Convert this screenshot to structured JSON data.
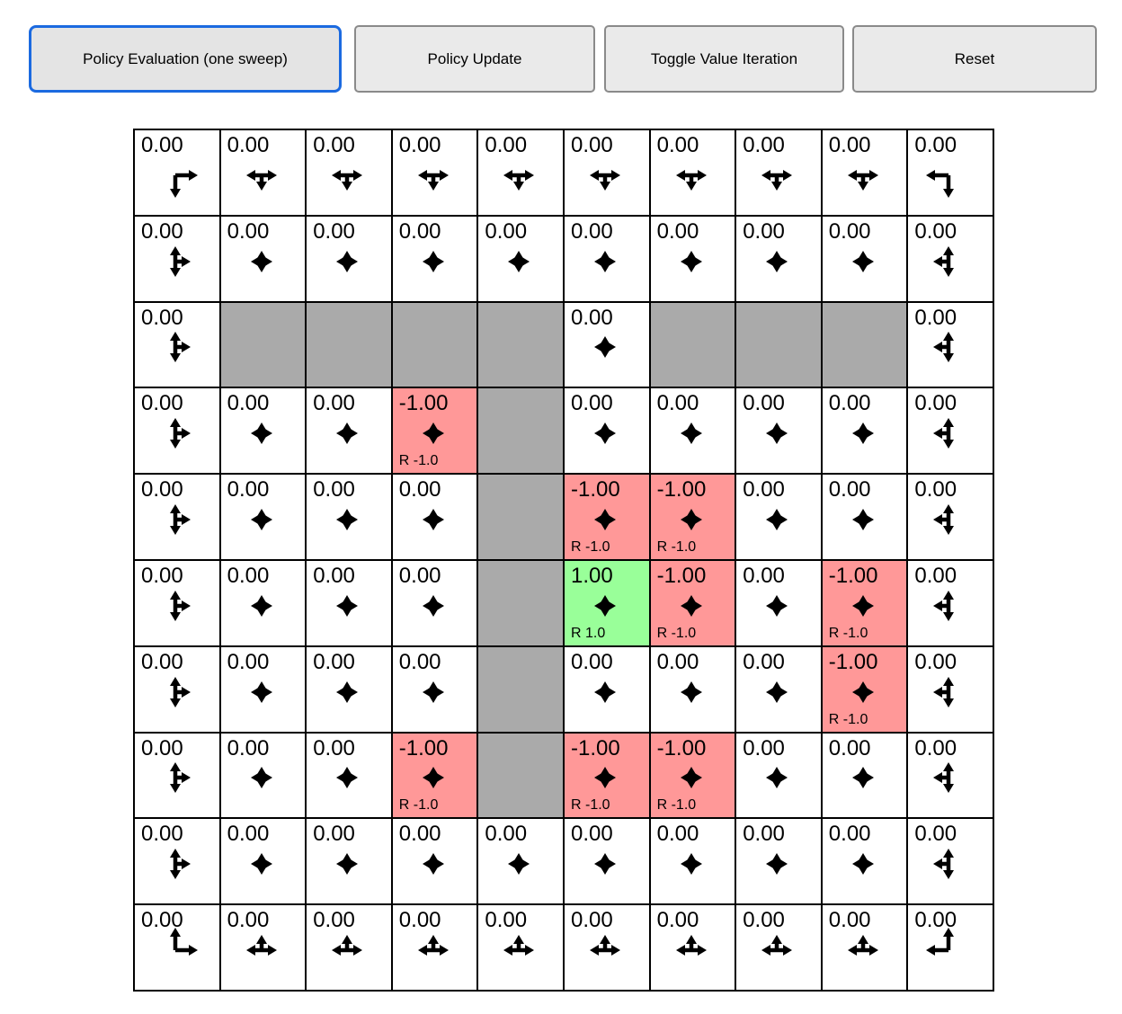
{
  "toolbar": {
    "buttons": [
      {
        "label": "Policy Evaluation (one sweep)",
        "focused": true
      },
      {
        "label": "Policy Update",
        "focused": false
      },
      {
        "label": "Toggle Value Iteration",
        "focused": false
      },
      {
        "label": "Reset",
        "focused": false
      }
    ]
  },
  "colors": {
    "wall": "#aaaaaa",
    "negative": "#ff9898",
    "positive": "#99ff99",
    "cell_bg": "#ffffff",
    "grid_line": "#000000",
    "arrow": "#000000",
    "focus_border": "#1b6ae0",
    "button_border": "#8a8a8a"
  },
  "grid": {
    "rows": 10,
    "cols": 10,
    "cells": [
      [
        {
          "v": "0.00",
          "a": [
            "r",
            "d"
          ]
        },
        {
          "v": "0.00",
          "a": [
            "l",
            "r",
            "d"
          ]
        },
        {
          "v": "0.00",
          "a": [
            "l",
            "r",
            "d"
          ]
        },
        {
          "v": "0.00",
          "a": [
            "l",
            "r",
            "d"
          ]
        },
        {
          "v": "0.00",
          "a": [
            "l",
            "r",
            "d"
          ]
        },
        {
          "v": "0.00",
          "a": [
            "l",
            "r",
            "d"
          ]
        },
        {
          "v": "0.00",
          "a": [
            "l",
            "r",
            "d"
          ]
        },
        {
          "v": "0.00",
          "a": [
            "l",
            "r",
            "d"
          ]
        },
        {
          "v": "0.00",
          "a": [
            "l",
            "r",
            "d"
          ]
        },
        {
          "v": "0.00",
          "a": [
            "l",
            "d"
          ]
        }
      ],
      [
        {
          "v": "0.00",
          "a": [
            "u",
            "d",
            "r"
          ]
        },
        {
          "v": "0.00",
          "a": [
            "u",
            "d",
            "l",
            "r"
          ]
        },
        {
          "v": "0.00",
          "a": [
            "u",
            "d",
            "l",
            "r"
          ]
        },
        {
          "v": "0.00",
          "a": [
            "u",
            "d",
            "l",
            "r"
          ]
        },
        {
          "v": "0.00",
          "a": [
            "u",
            "d",
            "l",
            "r"
          ]
        },
        {
          "v": "0.00",
          "a": [
            "u",
            "d",
            "l",
            "r"
          ]
        },
        {
          "v": "0.00",
          "a": [
            "u",
            "d",
            "l",
            "r"
          ]
        },
        {
          "v": "0.00",
          "a": [
            "u",
            "d",
            "l",
            "r"
          ]
        },
        {
          "v": "0.00",
          "a": [
            "u",
            "d",
            "l",
            "r"
          ]
        },
        {
          "v": "0.00",
          "a": [
            "u",
            "d",
            "l"
          ]
        }
      ],
      [
        {
          "v": "0.00",
          "a": [
            "u",
            "d",
            "r"
          ]
        },
        {
          "t": "wall"
        },
        {
          "t": "wall"
        },
        {
          "t": "wall"
        },
        {
          "t": "wall"
        },
        {
          "v": "0.00",
          "a": [
            "u",
            "d",
            "l",
            "r"
          ]
        },
        {
          "t": "wall"
        },
        {
          "t": "wall"
        },
        {
          "t": "wall"
        },
        {
          "v": "0.00",
          "a": [
            "u",
            "d",
            "l"
          ]
        }
      ],
      [
        {
          "v": "0.00",
          "a": [
            "u",
            "d",
            "r"
          ]
        },
        {
          "v": "0.00",
          "a": [
            "u",
            "d",
            "l",
            "r"
          ]
        },
        {
          "v": "0.00",
          "a": [
            "u",
            "d",
            "l",
            "r"
          ]
        },
        {
          "v": "-1.00",
          "t": "neg",
          "rw": "R -1.0",
          "a": [
            "u",
            "d",
            "l",
            "r"
          ]
        },
        {
          "t": "wall"
        },
        {
          "v": "0.00",
          "a": [
            "u",
            "d",
            "l",
            "r"
          ]
        },
        {
          "v": "0.00",
          "a": [
            "u",
            "d",
            "l",
            "r"
          ]
        },
        {
          "v": "0.00",
          "a": [
            "u",
            "d",
            "l",
            "r"
          ]
        },
        {
          "v": "0.00",
          "a": [
            "u",
            "d",
            "l",
            "r"
          ]
        },
        {
          "v": "0.00",
          "a": [
            "u",
            "d",
            "l"
          ]
        }
      ],
      [
        {
          "v": "0.00",
          "a": [
            "u",
            "d",
            "r"
          ]
        },
        {
          "v": "0.00",
          "a": [
            "u",
            "d",
            "l",
            "r"
          ]
        },
        {
          "v": "0.00",
          "a": [
            "u",
            "d",
            "l",
            "r"
          ]
        },
        {
          "v": "0.00",
          "a": [
            "u",
            "d",
            "l",
            "r"
          ]
        },
        {
          "t": "wall"
        },
        {
          "v": "-1.00",
          "t": "neg",
          "rw": "R -1.0",
          "a": [
            "u",
            "d",
            "l",
            "r"
          ]
        },
        {
          "v": "-1.00",
          "t": "neg",
          "rw": "R -1.0",
          "a": [
            "u",
            "d",
            "l",
            "r"
          ]
        },
        {
          "v": "0.00",
          "a": [
            "u",
            "d",
            "l",
            "r"
          ]
        },
        {
          "v": "0.00",
          "a": [
            "u",
            "d",
            "l",
            "r"
          ]
        },
        {
          "v": "0.00",
          "a": [
            "u",
            "d",
            "l"
          ]
        }
      ],
      [
        {
          "v": "0.00",
          "a": [
            "u",
            "d",
            "r"
          ]
        },
        {
          "v": "0.00",
          "a": [
            "u",
            "d",
            "l",
            "r"
          ]
        },
        {
          "v": "0.00",
          "a": [
            "u",
            "d",
            "l",
            "r"
          ]
        },
        {
          "v": "0.00",
          "a": [
            "u",
            "d",
            "l",
            "r"
          ]
        },
        {
          "t": "wall"
        },
        {
          "v": "1.00",
          "t": "pos",
          "rw": "R 1.0",
          "a": [
            "u",
            "d",
            "l",
            "r"
          ]
        },
        {
          "v": "-1.00",
          "t": "neg",
          "rw": "R -1.0",
          "a": [
            "u",
            "d",
            "l",
            "r"
          ]
        },
        {
          "v": "0.00",
          "a": [
            "u",
            "d",
            "l",
            "r"
          ]
        },
        {
          "v": "-1.00",
          "t": "neg",
          "rw": "R -1.0",
          "a": [
            "u",
            "d",
            "l",
            "r"
          ]
        },
        {
          "v": "0.00",
          "a": [
            "u",
            "d",
            "l"
          ]
        }
      ],
      [
        {
          "v": "0.00",
          "a": [
            "u",
            "d",
            "r"
          ]
        },
        {
          "v": "0.00",
          "a": [
            "u",
            "d",
            "l",
            "r"
          ]
        },
        {
          "v": "0.00",
          "a": [
            "u",
            "d",
            "l",
            "r"
          ]
        },
        {
          "v": "0.00",
          "a": [
            "u",
            "d",
            "l",
            "r"
          ]
        },
        {
          "t": "wall"
        },
        {
          "v": "0.00",
          "a": [
            "u",
            "d",
            "l",
            "r"
          ]
        },
        {
          "v": "0.00",
          "a": [
            "u",
            "d",
            "l",
            "r"
          ]
        },
        {
          "v": "0.00",
          "a": [
            "u",
            "d",
            "l",
            "r"
          ]
        },
        {
          "v": "-1.00",
          "t": "neg",
          "rw": "R -1.0",
          "a": [
            "u",
            "d",
            "l",
            "r"
          ]
        },
        {
          "v": "0.00",
          "a": [
            "u",
            "d",
            "l"
          ]
        }
      ],
      [
        {
          "v": "0.00",
          "a": [
            "u",
            "d",
            "r"
          ]
        },
        {
          "v": "0.00",
          "a": [
            "u",
            "d",
            "l",
            "r"
          ]
        },
        {
          "v": "0.00",
          "a": [
            "u",
            "d",
            "l",
            "r"
          ]
        },
        {
          "v": "-1.00",
          "t": "neg",
          "rw": "R -1.0",
          "a": [
            "u",
            "d",
            "l",
            "r"
          ]
        },
        {
          "t": "wall"
        },
        {
          "v": "-1.00",
          "t": "neg",
          "rw": "R -1.0",
          "a": [
            "u",
            "d",
            "l",
            "r"
          ]
        },
        {
          "v": "-1.00",
          "t": "neg",
          "rw": "R -1.0",
          "a": [
            "u",
            "d",
            "l",
            "r"
          ]
        },
        {
          "v": "0.00",
          "a": [
            "u",
            "d",
            "l",
            "r"
          ]
        },
        {
          "v": "0.00",
          "a": [
            "u",
            "d",
            "l",
            "r"
          ]
        },
        {
          "v": "0.00",
          "a": [
            "u",
            "d",
            "l"
          ]
        }
      ],
      [
        {
          "v": "0.00",
          "a": [
            "u",
            "d",
            "r"
          ]
        },
        {
          "v": "0.00",
          "a": [
            "u",
            "d",
            "l",
            "r"
          ]
        },
        {
          "v": "0.00",
          "a": [
            "u",
            "d",
            "l",
            "r"
          ]
        },
        {
          "v": "0.00",
          "a": [
            "u",
            "d",
            "l",
            "r"
          ]
        },
        {
          "v": "0.00",
          "a": [
            "u",
            "d",
            "l",
            "r"
          ]
        },
        {
          "v": "0.00",
          "a": [
            "u",
            "d",
            "l",
            "r"
          ]
        },
        {
          "v": "0.00",
          "a": [
            "u",
            "d",
            "l",
            "r"
          ]
        },
        {
          "v": "0.00",
          "a": [
            "u",
            "d",
            "l",
            "r"
          ]
        },
        {
          "v": "0.00",
          "a": [
            "u",
            "d",
            "l",
            "r"
          ]
        },
        {
          "v": "0.00",
          "a": [
            "u",
            "d",
            "l"
          ]
        }
      ],
      [
        {
          "v": "0.00",
          "a": [
            "u",
            "r"
          ]
        },
        {
          "v": "0.00",
          "a": [
            "u",
            "l",
            "r"
          ]
        },
        {
          "v": "0.00",
          "a": [
            "u",
            "l",
            "r"
          ]
        },
        {
          "v": "0.00",
          "a": [
            "u",
            "l",
            "r"
          ]
        },
        {
          "v": "0.00",
          "a": [
            "u",
            "l",
            "r"
          ]
        },
        {
          "v": "0.00",
          "a": [
            "u",
            "l",
            "r"
          ]
        },
        {
          "v": "0.00",
          "a": [
            "u",
            "l",
            "r"
          ]
        },
        {
          "v": "0.00",
          "a": [
            "u",
            "l",
            "r"
          ]
        },
        {
          "v": "0.00",
          "a": [
            "u",
            "l",
            "r"
          ]
        },
        {
          "v": "0.00",
          "a": [
            "u",
            "l"
          ]
        }
      ]
    ]
  }
}
